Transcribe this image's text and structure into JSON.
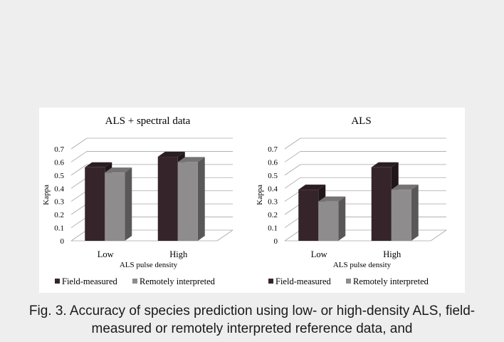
{
  "chart_data": [
    {
      "type": "bar",
      "title": "ALS + spectral data",
      "ylabel": "Kappa",
      "xlabel": "ALS pulse density",
      "categories": [
        "Low",
        "High"
      ],
      "ylim": [
        0,
        0.7
      ],
      "yticks": [
        "0",
        "0.1",
        "0.2",
        "0.3",
        "0.4",
        "0.5",
        "0.6",
        "0.7"
      ],
      "grid": true,
      "legend_position": "bottom",
      "series": [
        {
          "name": "Field-measured",
          "values": [
            0.56,
            0.64
          ],
          "color": "#35252b"
        },
        {
          "name": "Remotely interpreted",
          "values": [
            0.52,
            0.6
          ],
          "color": "#8f8c8d"
        }
      ]
    },
    {
      "type": "bar",
      "title": "ALS",
      "ylabel": "Kappa",
      "xlabel": "ALS pulse density",
      "categories": [
        "Low",
        "High"
      ],
      "ylim": [
        0,
        0.7
      ],
      "yticks": [
        "0",
        "0.1",
        "0.2",
        "0.3",
        "0.4",
        "0.5",
        "0.6",
        "0.7"
      ],
      "grid": true,
      "legend_position": "bottom",
      "series": [
        {
          "name": "Field-measured",
          "values": [
            0.39,
            0.56
          ],
          "color": "#35252b"
        },
        {
          "name": "Remotely interpreted",
          "values": [
            0.3,
            0.39
          ],
          "color": "#8f8c8d"
        }
      ]
    }
  ],
  "caption": "Fig. 3. Accuracy of species prediction using low- or high-density ALS, field-measured or remotely interpreted reference data, and"
}
